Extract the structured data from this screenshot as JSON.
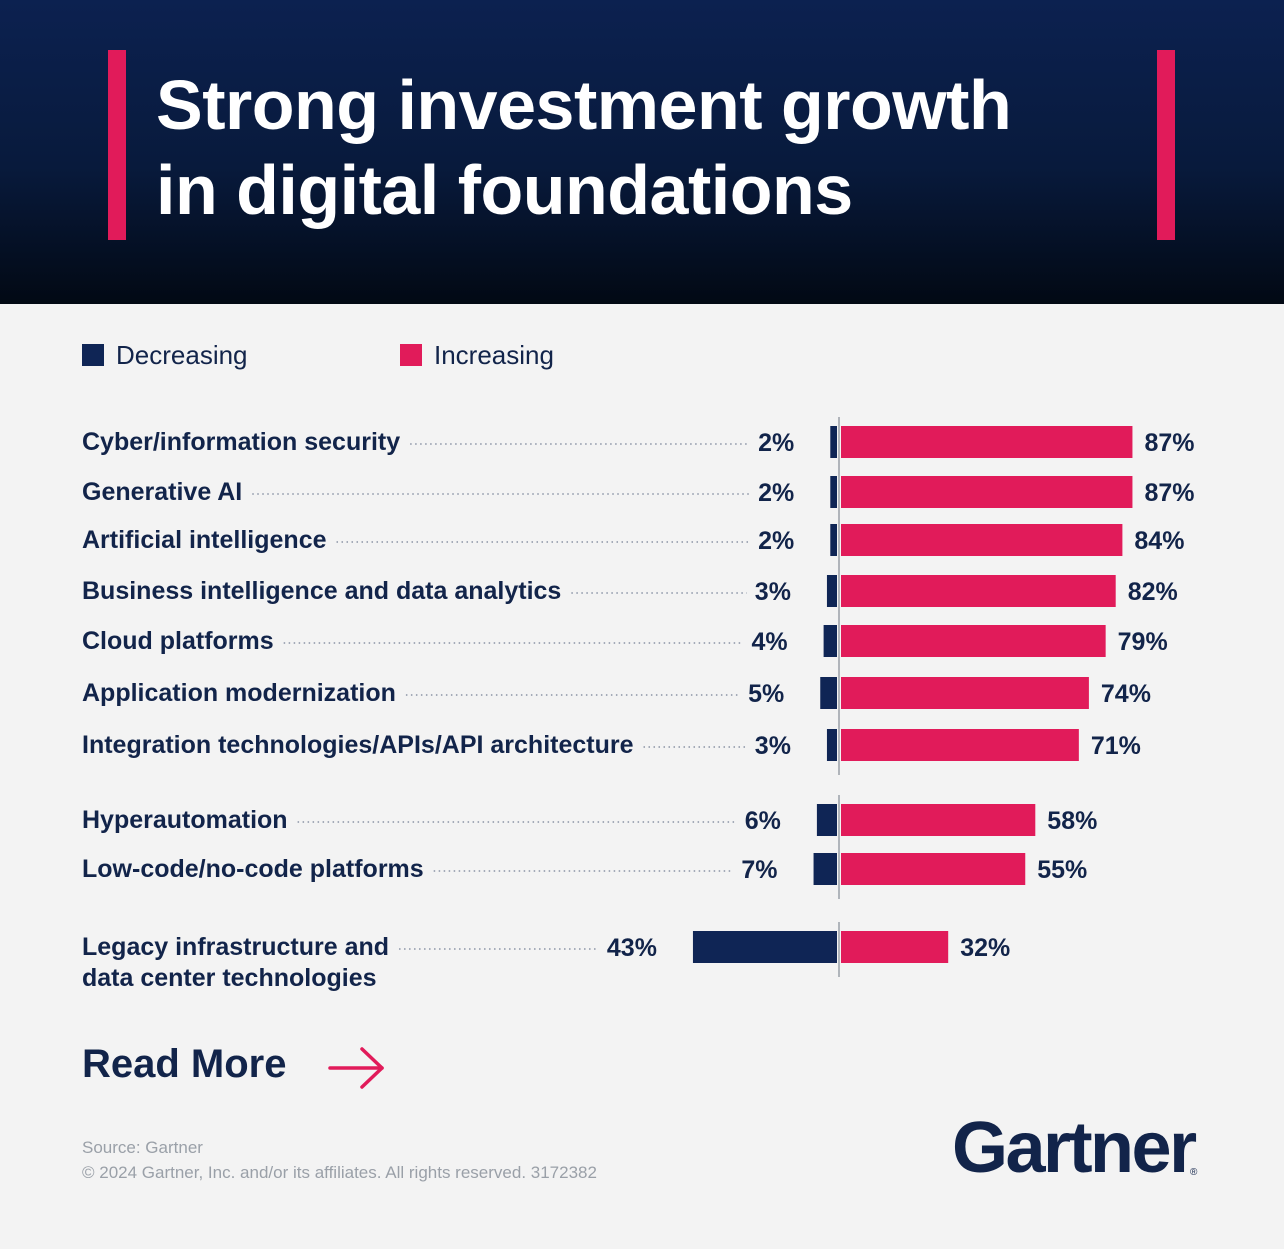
{
  "title": {
    "line1": "Strong investment growth",
    "line2": "in digital foundations"
  },
  "colors": {
    "decreasing": "#0f2555",
    "increasing": "#e11b5a",
    "header_bg": "#0b1f4a",
    "accent": "#e11b5a",
    "text": "#12244a"
  },
  "chart_data": {
    "type": "bar",
    "orientation": "horizontal diverging",
    "categories": [
      [
        "Cyber/information security"
      ],
      [
        "Generative AI"
      ],
      [
        "Artificial intelligence"
      ],
      [
        "Business intelligence and data analytics"
      ],
      [
        "Cloud platforms"
      ],
      [
        "Application modernization"
      ],
      [
        "Integration technologies/APIs/API architecture"
      ],
      [
        "Hyperautomation"
      ],
      [
        "Low-code/no-code platforms"
      ],
      [
        "Legacy infrastructure and",
        "data center technologies"
      ]
    ],
    "series": [
      {
        "name": "Decreasing",
        "values": [
          2,
          2,
          2,
          3,
          4,
          5,
          3,
          6,
          7,
          43
        ],
        "labels": [
          "2%",
          "2%",
          "2%",
          "3%",
          "4%",
          "5%",
          "3%",
          "6%",
          "7%",
          "43%"
        ]
      },
      {
        "name": "Increasing",
        "values": [
          87,
          87,
          84,
          82,
          79,
          74,
          71,
          58,
          55,
          32
        ],
        "labels": [
          "87%",
          "87%",
          "84%",
          "82%",
          "79%",
          "74%",
          "71%",
          "58%",
          "55%",
          "32%"
        ]
      }
    ],
    "groups": [
      [
        0,
        6
      ],
      [
        7,
        8
      ],
      [
        9,
        9
      ]
    ],
    "legend_position": "top-left",
    "grid": false
  },
  "footer": {
    "read_more": "Read More",
    "source": "Source: Gartner",
    "copyright": "© 2024 Gartner, Inc. and/or its affiliates. All rights reserved. 3172382",
    "brand": "Gartner",
    "brand_mark": "®"
  }
}
